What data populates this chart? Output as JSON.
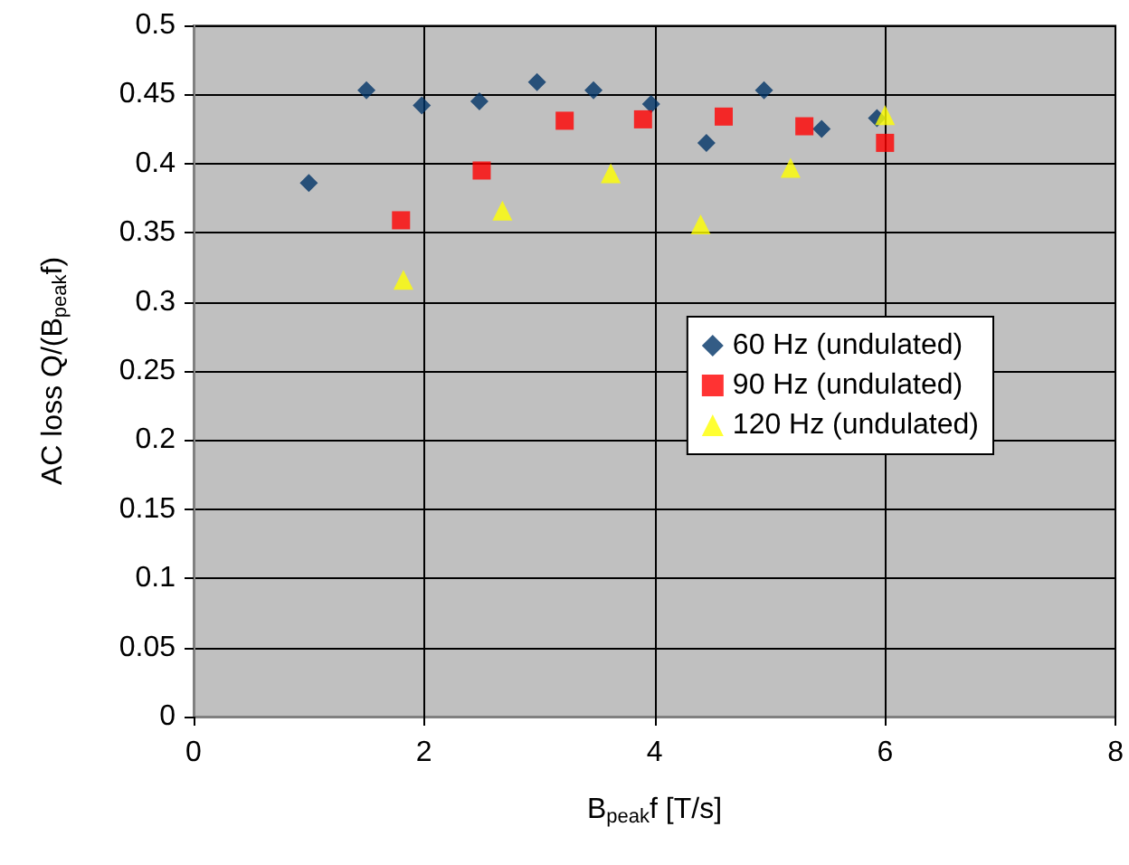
{
  "chart_data": {
    "type": "scatter",
    "xlabel": "B$_{peak}$f [T/s]",
    "ylabel": "AC loss Q/(B$_{peak}$f)",
    "xlim": [
      0,
      8
    ],
    "xticks": [
      0,
      2,
      4,
      6,
      8
    ],
    "ylim": [
      0,
      0.5
    ],
    "yticks": [
      0,
      0.05,
      0.1,
      0.15,
      0.2,
      0.25,
      0.3,
      0.35,
      0.4,
      0.45,
      0.5
    ],
    "grid": true,
    "legend": "right",
    "series": [
      {
        "name": "60 Hz (undulated)",
        "color": "#003366",
        "marker": "diamond",
        "x": [
          1.0,
          1.5,
          1.98,
          2.48,
          2.98,
          3.47,
          3.97,
          4.45,
          4.95,
          5.45,
          5.93
        ],
        "values": [
          0.386,
          0.453,
          0.442,
          0.445,
          0.459,
          0.453,
          0.443,
          0.415,
          0.453,
          0.425,
          0.433
        ]
      },
      {
        "name": "90 Hz (undulated)",
        "color": "#ff0000",
        "marker": "square",
        "x": [
          1.8,
          2.5,
          3.22,
          3.9,
          4.6,
          5.3,
          6.0
        ],
        "values": [
          0.359,
          0.395,
          0.431,
          0.432,
          0.434,
          0.427,
          0.415
        ]
      },
      {
        "name": "120 Hz (undulated)",
        "color": "#ffff00",
        "marker": "triangle",
        "x": [
          1.82,
          2.68,
          3.62,
          4.4,
          5.18,
          6.0
        ],
        "values": [
          0.316,
          0.366,
          0.393,
          0.356,
          0.397,
          0.435
        ]
      }
    ]
  }
}
